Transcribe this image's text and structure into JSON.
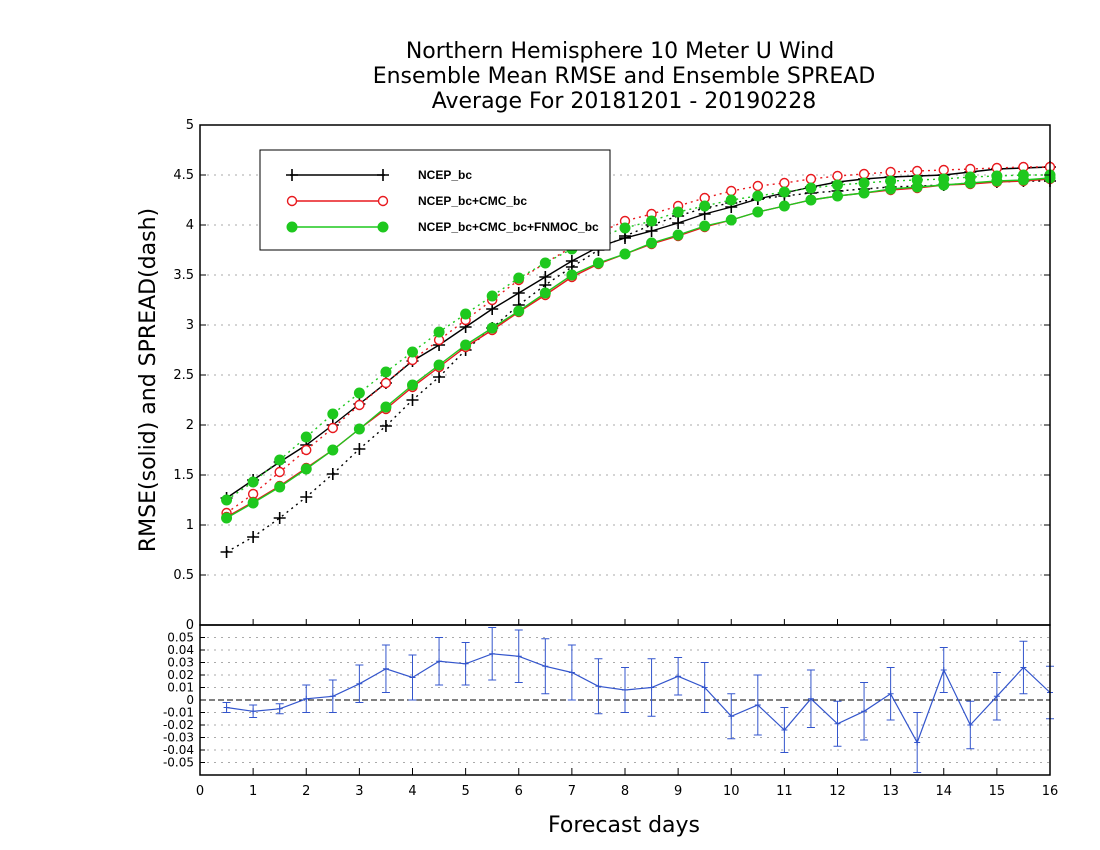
{
  "chart_data": {
    "type": "line",
    "title": [
      "Northern Hemisphere 10 Meter U Wind",
      "Ensemble Mean RMSE and Ensemble SPREAD",
      "Average For 20181201 - 20190228"
    ],
    "ylabel": "RMSE(solid)  and  SPREAD(dash)",
    "xlabel": "Forecast days",
    "xlim": [
      0,
      16
    ],
    "ylim": [
      0,
      5
    ],
    "x_ticks": [
      "0",
      "1",
      "2",
      "3",
      "4",
      "5",
      "6",
      "7",
      "8",
      "9",
      "10",
      "11",
      "12",
      "13",
      "14",
      "15",
      "16"
    ],
    "y_ticks": [
      "0",
      "0.5",
      "1",
      "1.5",
      "2",
      "2.5",
      "3",
      "3.5",
      "4",
      "4.5",
      "5"
    ],
    "x": [
      0.5,
      1,
      1.5,
      2,
      2.5,
      3,
      3.5,
      4,
      4.5,
      5,
      5.5,
      6,
      6.5,
      7,
      7.5,
      8,
      8.5,
      9,
      9.5,
      10,
      10.5,
      11,
      11.5,
      12,
      12.5,
      13,
      13.5,
      14,
      14.5,
      15,
      15.5,
      16
    ],
    "legend": [
      "NCEP_bc",
      "NCEP_bc+CMC_bc",
      "NCEP_bc+CMC_bc+FNMOC_bc"
    ],
    "series": [
      {
        "name": "NCEP_bc",
        "color": "#000000",
        "marker": "plus",
        "rmse": [
          1.27,
          1.45,
          1.63,
          1.8,
          2.0,
          2.21,
          2.42,
          2.64,
          2.8,
          2.98,
          3.16,
          3.32,
          3.48,
          3.64,
          3.78,
          3.87,
          3.94,
          4.02,
          4.11,
          4.18,
          4.26,
          4.32,
          4.38,
          4.43,
          4.46,
          4.48,
          4.49,
          4.5,
          4.53,
          4.56,
          4.57,
          4.58
        ],
        "spread": [
          0.73,
          0.88,
          1.07,
          1.28,
          1.51,
          1.76,
          1.99,
          2.25,
          2.48,
          2.75,
          2.97,
          3.2,
          3.4,
          3.58,
          3.75,
          3.89,
          4.0,
          4.09,
          4.17,
          4.22,
          4.26,
          4.29,
          4.32,
          4.34,
          4.36,
          4.38,
          4.39,
          4.4,
          4.42,
          4.43,
          4.44,
          4.44
        ]
      },
      {
        "name": "NCEP_bc+CMC_bc",
        "color": "#e8191e",
        "marker": "open-circle",
        "rmse": [
          1.08,
          1.23,
          1.39,
          1.57,
          1.75,
          1.96,
          2.16,
          2.38,
          2.58,
          2.78,
          2.95,
          3.13,
          3.3,
          3.48,
          3.61,
          3.71,
          3.81,
          3.89,
          3.98,
          4.05,
          4.13,
          4.19,
          4.25,
          4.29,
          4.32,
          4.35,
          4.37,
          4.4,
          4.41,
          4.43,
          4.44,
          4.46
        ],
        "spread": [
          1.12,
          1.31,
          1.53,
          1.75,
          1.97,
          2.2,
          2.42,
          2.65,
          2.85,
          3.05,
          3.25,
          3.45,
          3.62,
          3.78,
          3.92,
          4.04,
          4.11,
          4.19,
          4.27,
          4.34,
          4.39,
          4.42,
          4.46,
          4.49,
          4.51,
          4.53,
          4.54,
          4.55,
          4.56,
          4.57,
          4.58,
          4.58
        ]
      },
      {
        "name": "NCEP_bc+CMC_bc+FNMOC_bc",
        "color": "#1ec81e",
        "marker": "filled-circle",
        "rmse": [
          1.07,
          1.22,
          1.38,
          1.56,
          1.75,
          1.96,
          2.18,
          2.4,
          2.6,
          2.8,
          2.97,
          3.14,
          3.32,
          3.5,
          3.62,
          3.71,
          3.82,
          3.9,
          3.99,
          4.05,
          4.13,
          4.19,
          4.25,
          4.29,
          4.32,
          4.36,
          4.38,
          4.4,
          4.42,
          4.44,
          4.45,
          4.47
        ],
        "spread": [
          1.25,
          1.43,
          1.65,
          1.88,
          2.11,
          2.32,
          2.53,
          2.73,
          2.93,
          3.11,
          3.29,
          3.47,
          3.62,
          3.76,
          3.88,
          3.97,
          4.04,
          4.13,
          4.19,
          4.25,
          4.29,
          4.33,
          4.37,
          4.4,
          4.42,
          4.44,
          4.45,
          4.46,
          4.48,
          4.49,
          4.5,
          4.5
        ]
      }
    ],
    "diff_panel": {
      "ylim": [
        -0.06,
        0.06
      ],
      "y_ticks": [
        "0.05",
        "0.04",
        "0.03",
        "0.02",
        "0.01",
        "0",
        "-0.01",
        "-0.02",
        "-0.03",
        "-0.04",
        "-0.05"
      ],
      "color": "#3355cc",
      "values": [
        -0.006,
        -0.009,
        -0.007,
        0.001,
        0.003,
        0.013,
        0.025,
        0.018,
        0.031,
        0.029,
        0.037,
        0.035,
        0.027,
        0.022,
        0.011,
        0.008,
        0.01,
        0.019,
        0.01,
        -0.013,
        -0.004,
        -0.024,
        0.001,
        -0.019,
        -0.009,
        0.005,
        -0.034,
        0.024,
        -0.02,
        0.003,
        0.026,
        0.006
      ],
      "err": [
        0.004,
        0.005,
        0.004,
        0.011,
        0.013,
        0.015,
        0.019,
        0.018,
        0.019,
        0.017,
        0.021,
        0.021,
        0.022,
        0.022,
        0.022,
        0.018,
        0.023,
        0.015,
        0.02,
        0.018,
        0.024,
        0.018,
        0.023,
        0.018,
        0.023,
        0.021,
        0.024,
        0.018,
        0.019,
        0.019,
        0.021,
        0.021
      ]
    }
  }
}
